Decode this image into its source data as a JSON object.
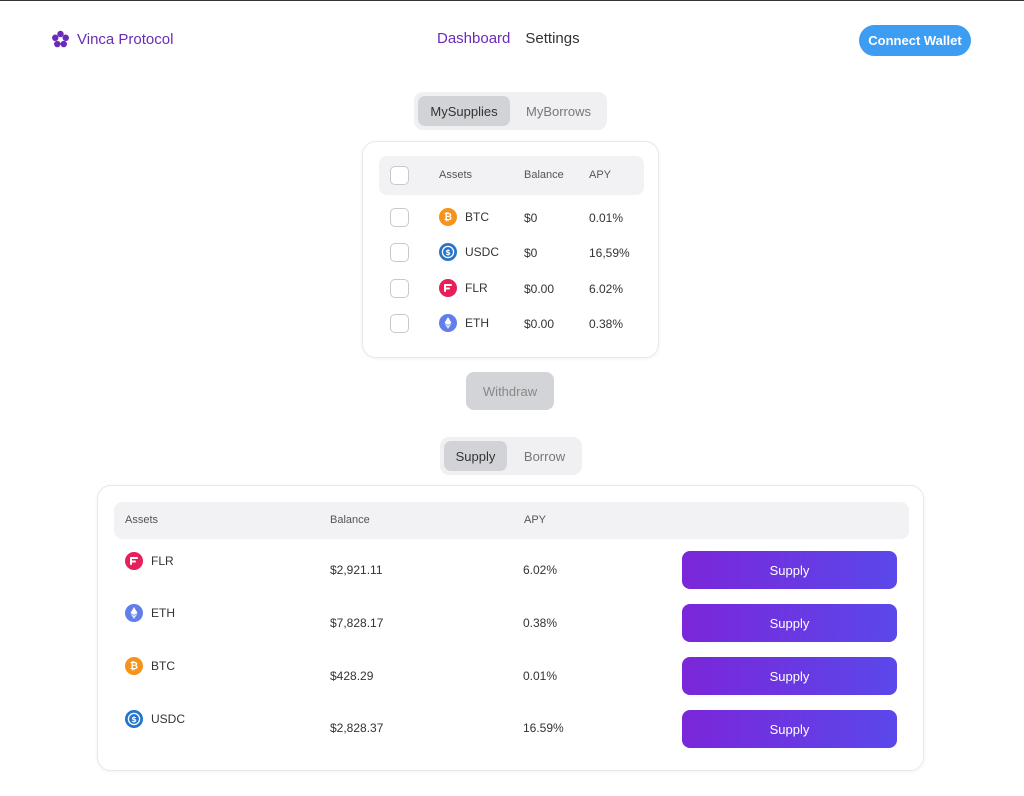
{
  "brand": {
    "name": "Vinca Protocol",
    "icon": "flower-icon",
    "color": "#6a2bb8"
  },
  "nav": {
    "items": [
      {
        "label": "Dashboard",
        "active": true
      },
      {
        "label": "Settings",
        "active": false
      }
    ]
  },
  "connect_wallet": {
    "label": "Connect Wallet",
    "color": "#3d9df3"
  },
  "position_tabs": {
    "items": [
      {
        "label": "MySupplies",
        "active": true
      },
      {
        "label": "MyBorrows",
        "active": false
      }
    ]
  },
  "my_supplies": {
    "headers": {
      "assets": "Assets",
      "balance": "Balance",
      "apy": "APY"
    },
    "rows": [
      {
        "symbol": "BTC",
        "icon": "btc-icon",
        "balance": "$0",
        "apy": "0.01%",
        "checked": false
      },
      {
        "symbol": "USDC",
        "icon": "usdc-icon",
        "balance": "$0",
        "apy": "16,59%",
        "checked": false
      },
      {
        "symbol": "FLR",
        "icon": "flr-icon",
        "balance": "$0.00",
        "apy": "6.02%",
        "checked": false
      },
      {
        "symbol": "ETH",
        "icon": "eth-icon",
        "balance": "$0.00",
        "apy": "0.38%",
        "checked": false
      }
    ]
  },
  "withdraw": {
    "label": "Withdraw",
    "disabled": true
  },
  "market_tabs": {
    "items": [
      {
        "label": "Supply",
        "active": true
      },
      {
        "label": "Borrow",
        "active": false
      }
    ]
  },
  "assets_table": {
    "headers": {
      "assets": "Assets",
      "balance": "Balance",
      "apy": "APY"
    },
    "rows": [
      {
        "symbol": "FLR",
        "icon": "flr-icon",
        "balance": "$2,921.11",
        "apy": "6.02%",
        "action": "Supply"
      },
      {
        "symbol": "ETH",
        "icon": "eth-icon",
        "balance": "$7,828.17",
        "apy": "0.38%",
        "action": "Supply"
      },
      {
        "symbol": "BTC",
        "icon": "btc-icon",
        "balance": "$428.29",
        "apy": "0.01%",
        "action": "Supply"
      },
      {
        "symbol": "USDC",
        "icon": "usdc-icon",
        "balance": "$2,828.37",
        "apy": "16.59%",
        "action": "Supply"
      }
    ]
  },
  "coin_colors": {
    "btc": "#f7931a",
    "usdc": "#2775ca",
    "flr": "#e62058",
    "eth": "#627eea"
  }
}
